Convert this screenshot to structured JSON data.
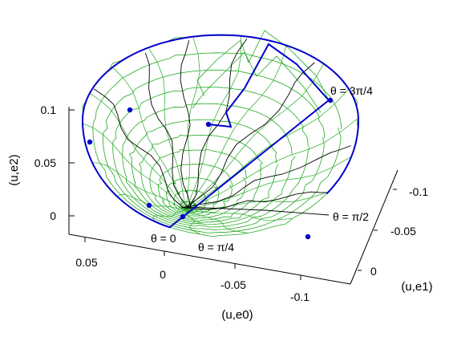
{
  "chart_data": {
    "type": "line",
    "chart_kind": "3d-parametric-curves",
    "title": "",
    "xlabel": "(u,e0)",
    "ylabel": "(u,e1)",
    "zlabel": "(u,e2)",
    "x_ticks": [
      "0.05",
      "0",
      "-0.05",
      "-0.1"
    ],
    "y_ticks": [
      "-0.1",
      "-0.05",
      "0"
    ],
    "z_ticks": [
      "0.1",
      "0.05",
      "0"
    ],
    "xlim": [
      -0.12,
      0.08
    ],
    "ylim": [
      -0.12,
      0.01
    ],
    "zlim": [
      -0.01,
      0.11
    ],
    "annotations": [
      {
        "text": "θ = 3π/4"
      },
      {
        "text": "θ = π/2"
      },
      {
        "text": "θ = 0"
      },
      {
        "text": "θ = π/4"
      }
    ],
    "series_colors": {
      "surface_mesh": "#22aa22",
      "boundary_curve": "#0000cc",
      "meridian_curves": "#000000",
      "boundary_markers": "#0000cc"
    },
    "boundary_marker_count": 7,
    "mesh_ring_count": 12,
    "grid": false,
    "legend": "none"
  }
}
